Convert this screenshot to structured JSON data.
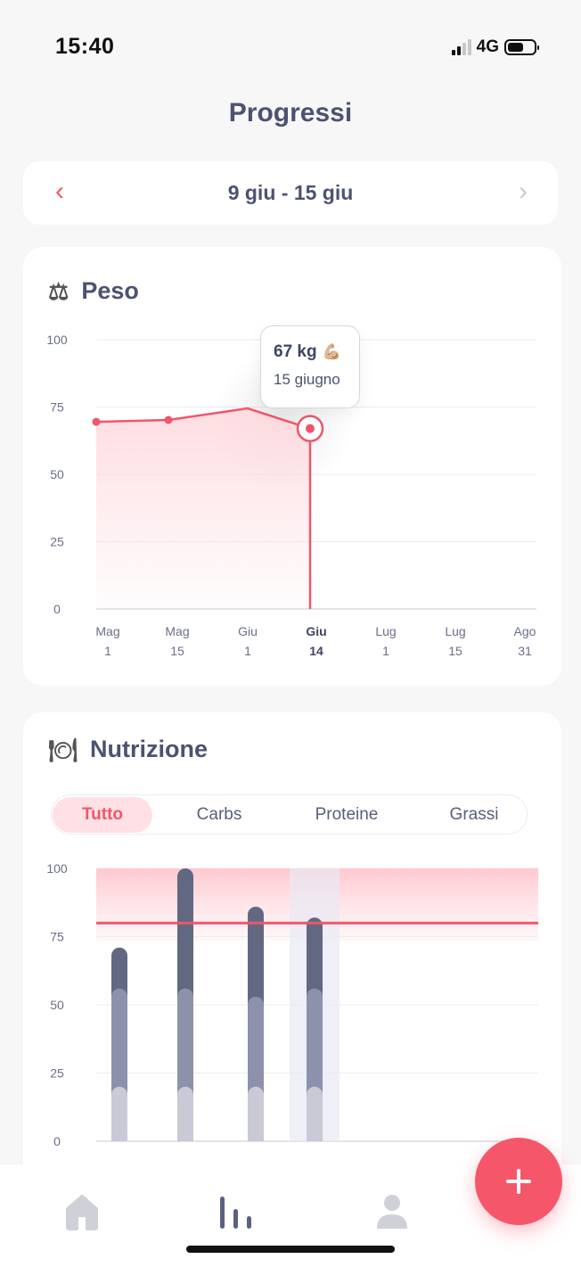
{
  "status_bar": {
    "time": "15:40",
    "network": "4G",
    "battery_level": 0.6
  },
  "header": {
    "title": "Progressi"
  },
  "week_selector": {
    "label": "9 giu - 15 giu",
    "prev_icon": "chevron-left-icon",
    "next_icon": "chevron-right-icon"
  },
  "weight": {
    "title": "Peso",
    "icon": "balance-scale-icon",
    "tooltip": {
      "value": "67 kg",
      "emoji": "💪🏼",
      "date": "15 giugno"
    },
    "chart_data": {
      "type": "area",
      "ylim": [
        0,
        100
      ],
      "y_ticks": [
        "100",
        "75",
        "50",
        "25",
        "0"
      ],
      "x_ticks": [
        {
          "month": "Mag",
          "day": "1"
        },
        {
          "month": "Mag",
          "day": "15"
        },
        {
          "month": "Giu",
          "day": "1"
        },
        {
          "month": "Giu",
          "day": "14",
          "selected": true
        },
        {
          "month": "Lug",
          "day": "1"
        },
        {
          "month": "Lug",
          "day": "15"
        },
        {
          "month": "Ago",
          "day": "31"
        }
      ],
      "series": [
        {
          "values": [
            {
              "x": 0,
              "y": 69.5
            },
            {
              "x": 1,
              "y": 70.2
            },
            {
              "x": 2,
              "y": 74.5
            },
            {
              "x": 3,
              "y": 67.0
            }
          ]
        }
      ],
      "selected_index": 3,
      "colors": {
        "line": "#f0566b",
        "fill": "#ffd9de"
      }
    }
  },
  "nutrition": {
    "title": "Nutrizione",
    "icon": "plate-cutlery-icon",
    "tabs": [
      {
        "label": "Tutto",
        "active": true
      },
      {
        "label": "Carbs",
        "active": false
      },
      {
        "label": "Proteine",
        "active": false
      },
      {
        "label": "Grassi",
        "active": false
      }
    ],
    "chart_data": {
      "type": "bar",
      "ylim": [
        0,
        100
      ],
      "y_ticks": [
        "100",
        "75",
        "50",
        "25",
        "0"
      ],
      "target_line": 80,
      "target_band": [
        80,
        100
      ],
      "bars": [
        {
          "total": 71,
          "segments": [
            20,
            56,
            71
          ]
        },
        {
          "total": 100,
          "segments": [
            20,
            56,
            100
          ]
        },
        {
          "total": 86,
          "segments": [
            20,
            53,
            86
          ]
        },
        {
          "total": 82,
          "segments": [
            20,
            56,
            82
          ],
          "selected": true
        }
      ],
      "colors": {
        "seg1": "#c9cad6",
        "seg2": "#8e91ac",
        "seg3": "#636882",
        "target": "#f0566b"
      }
    }
  },
  "bottom_nav": {
    "items": [
      {
        "icon": "home-icon",
        "active": false
      },
      {
        "icon": "stats-icon",
        "active": true
      },
      {
        "icon": "profile-icon",
        "active": false
      }
    ],
    "fab_icon": "plus-icon"
  }
}
